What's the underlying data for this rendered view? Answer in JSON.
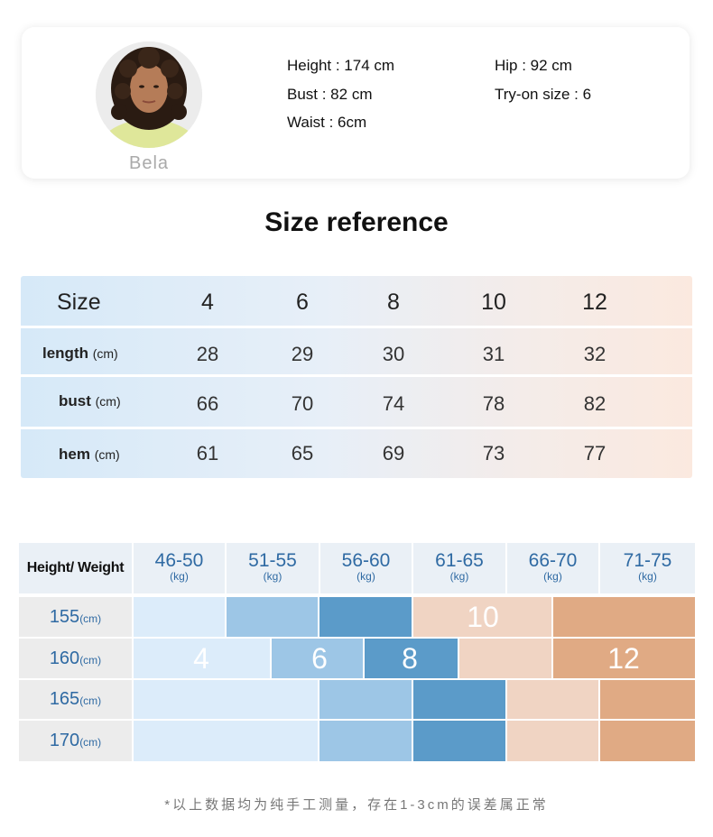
{
  "model": {
    "name": "Bela",
    "height": "Height : 174 cm",
    "bust": "Bust : 82 cm",
    "waist": "Waist : 6cm",
    "hip": "Hip : 92 cm",
    "tryon": "Try-on size : 6"
  },
  "title": "Size reference",
  "size_table": {
    "header_label": "Size",
    "sizes": [
      "4",
      "6",
      "8",
      "10",
      "12"
    ],
    "rows": [
      {
        "label": "length",
        "unit": "(cm)",
        "values": [
          "28",
          "29",
          "30",
          "31",
          "32"
        ]
      },
      {
        "label": "bust",
        "unit": "(cm)",
        "values": [
          "66",
          "70",
          "74",
          "78",
          "82"
        ]
      },
      {
        "label": "hem",
        "unit": "(cm)",
        "values": [
          "61",
          "65",
          "69",
          "73",
          "77"
        ]
      }
    ]
  },
  "hw_table": {
    "corner": "Height/ Weight",
    "weights": [
      {
        "range": "46-50",
        "unit": "(kg)"
      },
      {
        "range": "51-55",
        "unit": "(kg)"
      },
      {
        "range": "56-60",
        "unit": "(kg)"
      },
      {
        "range": "61-65",
        "unit": "(kg)"
      },
      {
        "range": "66-70",
        "unit": "(kg)"
      },
      {
        "range": "71-75",
        "unit": "(kg)"
      }
    ],
    "heights": [
      {
        "value": "155",
        "unit": "(cm)"
      },
      {
        "value": "160",
        "unit": "(cm)"
      },
      {
        "value": "165",
        "unit": "(cm)"
      },
      {
        "value": "170",
        "unit": "(cm)"
      }
    ],
    "size_labels": {
      "s4": "4",
      "s6": "6",
      "s8": "8",
      "s10": "10",
      "s12": "12"
    },
    "colors": {
      "size4": "#dcecfa",
      "size6": "#9dc6e6",
      "size8": "#5b9bc9",
      "size10": "#f0d4c3",
      "size12": "#e0aa84"
    }
  },
  "footnote": "*以上数据均为纯手工测量，存在1-3cm的误差属正常"
}
